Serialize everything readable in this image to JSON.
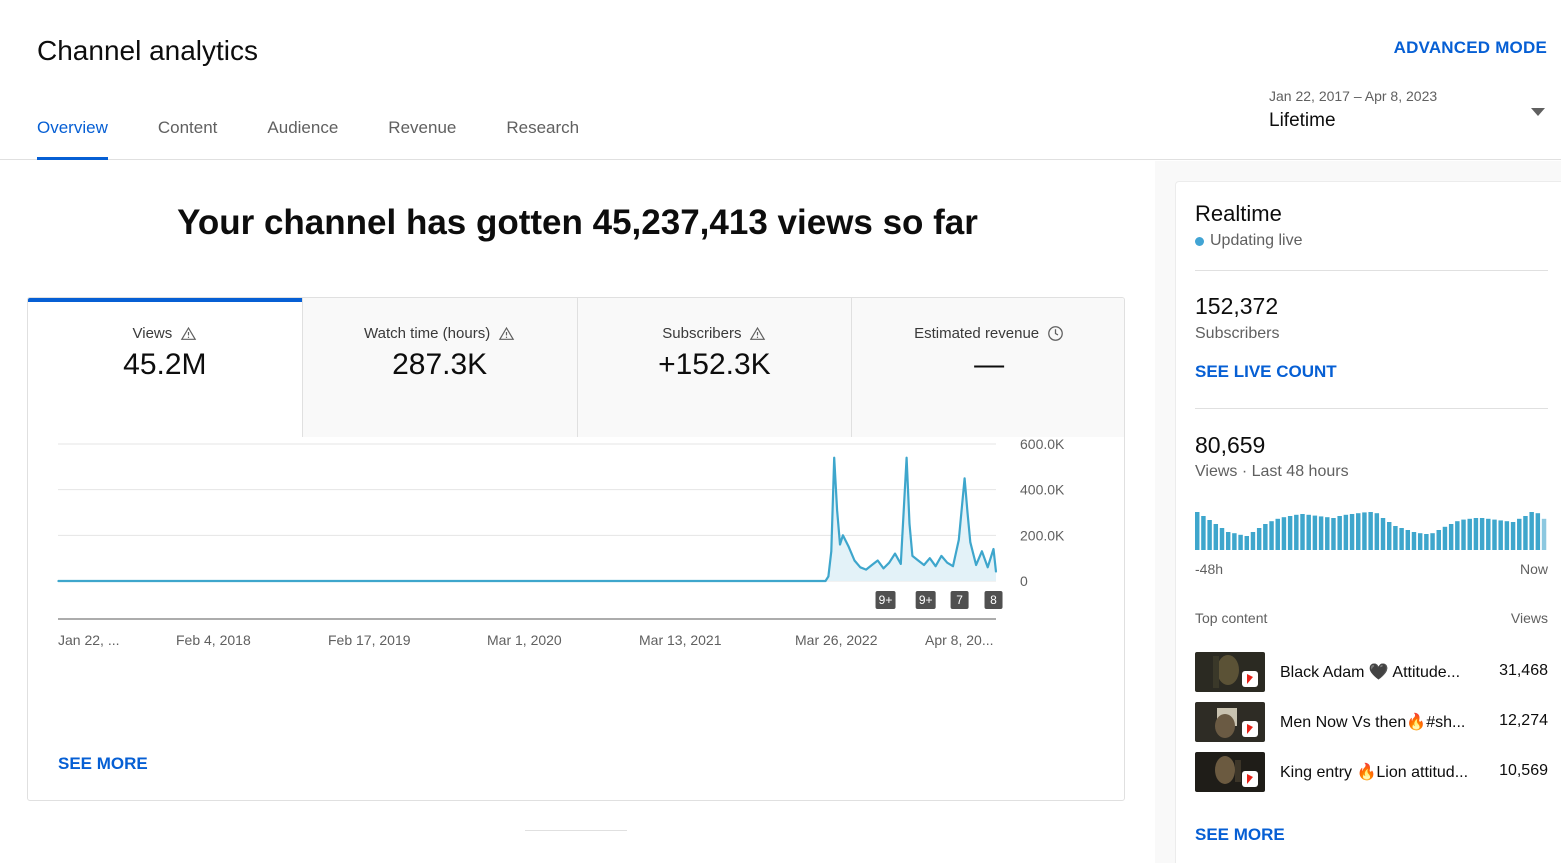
{
  "header": {
    "title": "Channel analytics",
    "advanced_mode": "ADVANCED MODE",
    "tabs": [
      {
        "label": "Overview",
        "active": true
      },
      {
        "label": "Content",
        "active": false
      },
      {
        "label": "Audience",
        "active": false
      },
      {
        "label": "Revenue",
        "active": false
      },
      {
        "label": "Research",
        "active": false
      }
    ],
    "date_range": "Jan 22, 2017 – Apr 8, 2023",
    "date_label": "Lifetime"
  },
  "main": {
    "headline": "Your channel has gotten 45,237,413 views so far",
    "metrics": [
      {
        "label": "Views",
        "value": "45.2M",
        "icon": "warning-icon",
        "active": true
      },
      {
        "label": "Watch time (hours)",
        "value": "287.3K",
        "icon": "warning-icon",
        "active": false
      },
      {
        "label": "Subscribers",
        "value": "+152.3K",
        "icon": "warning-icon",
        "active": false
      },
      {
        "label": "Estimated revenue",
        "value": "—",
        "icon": "clock-icon",
        "active": false
      }
    ],
    "see_more": "SEE MORE"
  },
  "chart_data": {
    "type": "area",
    "title": "",
    "xlabel": "",
    "ylabel": "",
    "x_tick_labels": [
      "Jan 22, ...",
      "Feb 4, 2018",
      "Feb 17, 2019",
      "Mar 1, 2020",
      "Mar 13, 2021",
      "Mar 26, 2022",
      "Apr 8, 20..."
    ],
    "y_tick_labels": [
      "600.0K",
      "400.0K",
      "200.0K",
      "0"
    ],
    "ylim": [
      0,
      600000
    ],
    "grid": true,
    "color": "#3ea6cc",
    "series": [
      {
        "x": [
          "2017-01-22",
          "2022-02-20",
          "2022-02-27",
          "2022-03-06",
          "2022-03-13",
          "2022-03-20",
          "2022-03-27",
          "2022-04-03",
          "2022-04-17",
          "2022-05-01",
          "2022-05-15",
          "2022-05-29",
          "2022-06-12",
          "2022-06-26",
          "2022-07-10",
          "2022-07-24",
          "2022-08-07",
          "2022-08-21",
          "2022-09-04",
          "2022-09-11",
          "2022-09-18",
          "2022-10-02",
          "2022-10-16",
          "2022-10-30",
          "2022-11-13",
          "2022-11-27",
          "2022-12-11",
          "2022-12-25",
          "2023-01-08",
          "2023-01-22",
          "2023-01-29",
          "2023-02-05",
          "2023-02-12",
          "2023-02-19",
          "2023-03-05",
          "2023-03-19",
          "2023-04-02",
          "2023-04-08"
        ],
        "values": [
          0,
          0,
          20000,
          130000,
          540000,
          310000,
          160000,
          200000,
          150000,
          90000,
          60000,
          50000,
          70000,
          90000,
          55000,
          80000,
          120000,
          75000,
          540000,
          250000,
          110000,
          90000,
          70000,
          100000,
          65000,
          110000,
          80000,
          65000,
          180000,
          450000,
          300000,
          170000,
          120000,
          70000,
          130000,
          60000,
          140000,
          40000
        ]
      }
    ],
    "annotations": [
      {
        "label": "9+",
        "date": "2022-07-15"
      },
      {
        "label": "9+",
        "date": "2022-10-20"
      },
      {
        "label": "7",
        "date": "2023-01-10"
      },
      {
        "label": "8",
        "date": "2023-04-02"
      }
    ]
  },
  "sidebar": {
    "title": "Realtime",
    "live_label": "Updating live",
    "subscribers_value": "152,372",
    "subscribers_label": "Subscribers",
    "see_live_count": "SEE LIVE COUNT",
    "views_value": "80,659",
    "views_label": "Views · Last 48 hours",
    "axis_start": "-48h",
    "axis_end": "Now",
    "hourly_bars": [
      0.95,
      0.85,
      0.75,
      0.65,
      0.55,
      0.45,
      0.42,
      0.38,
      0.35,
      0.45,
      0.55,
      0.65,
      0.72,
      0.78,
      0.82,
      0.85,
      0.88,
      0.9,
      0.88,
      0.86,
      0.84,
      0.82,
      0.8,
      0.85,
      0.88,
      0.9,
      0.92,
      0.94,
      0.95,
      0.92,
      0.8,
      0.7,
      0.6,
      0.55,
      0.5,
      0.45,
      0.42,
      0.4,
      0.42,
      0.5,
      0.58,
      0.65,
      0.72,
      0.76,
      0.78,
      0.8,
      0.8,
      0.78,
      0.76,
      0.74,
      0.72,
      0.7,
      0.78,
      0.85,
      0.95,
      0.92,
      0.78
    ],
    "top_content_label": "Top content",
    "top_content_views_label": "Views",
    "top_content": [
      {
        "title": "Black Adam 🖤 Attitude...",
        "views": "31,468"
      },
      {
        "title": "Men Now Vs then🔥#sh...",
        "views": "12,274"
      },
      {
        "title": "King entry 🔥Lion attitud...",
        "views": "10,569"
      }
    ],
    "see_more": "SEE MORE"
  },
  "colors": {
    "accent": "#065fd4",
    "chart_line": "#3ea6cc",
    "live_dot": "#41a4d4"
  }
}
